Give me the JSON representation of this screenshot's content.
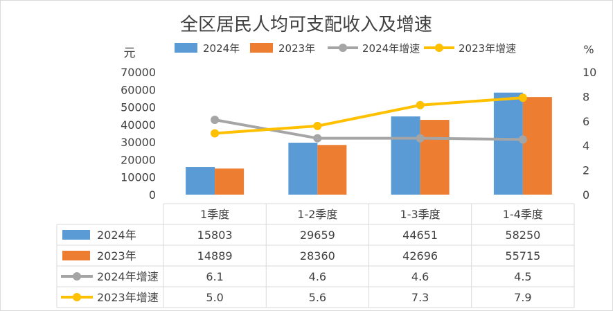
{
  "chart_data": {
    "type": "bar+line",
    "title": "全区居民人均可支配收入及增速",
    "y_left_unit": "元",
    "y_right_unit": "%",
    "y_left_range": [
      0,
      70000
    ],
    "y_left_ticks": [
      "0",
      "10000",
      "20000",
      "30000",
      "40000",
      "50000",
      "60000",
      "70000"
    ],
    "y_right_range": [
      0,
      10
    ],
    "y_right_ticks": [
      "0",
      "2",
      "4",
      "6",
      "8",
      "10"
    ],
    "categories": [
      "1季度",
      "1-2季度",
      "1-3季度",
      "1-4季度"
    ],
    "bar_series": [
      {
        "name": "2024年",
        "color": "#5b9bd5",
        "values": [
          15803,
          29659,
          44651,
          58250
        ],
        "labels": [
          "15803",
          "29659",
          "44651",
          "58250"
        ]
      },
      {
        "name": "2023年",
        "color": "#ed7d31",
        "values": [
          14889,
          28360,
          42696,
          55715
        ],
        "labels": [
          "14889",
          "28360",
          "42696",
          "55715"
        ]
      }
    ],
    "line_series": [
      {
        "name": "2024年增速",
        "color": "#a5a5a5",
        "values": [
          6.1,
          4.6,
          4.6,
          4.5
        ],
        "labels": [
          "6.1",
          "4.6",
          "4.6",
          "4.5"
        ]
      },
      {
        "name": "2023年增速",
        "color": "#ffc000",
        "values": [
          5.0,
          5.6,
          7.3,
          7.9
        ],
        "labels": [
          "5.0",
          "5.6",
          "7.3",
          "7.9"
        ]
      }
    ],
    "legend_position": "top",
    "data_table": true,
    "grid": false
  }
}
